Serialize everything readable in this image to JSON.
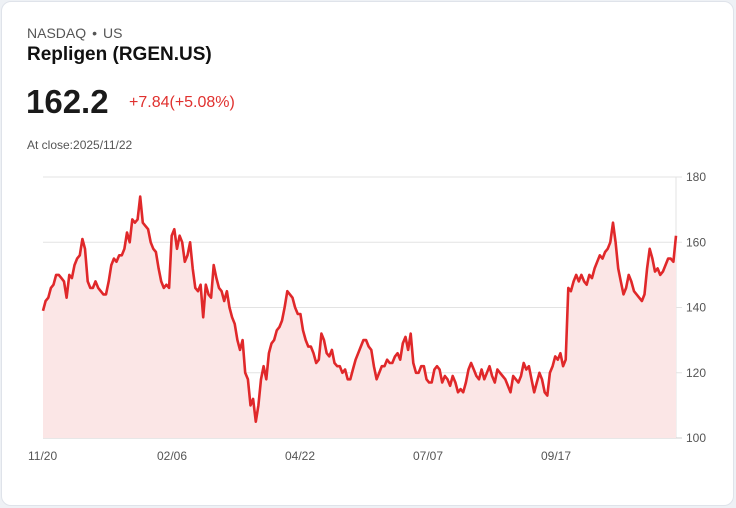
{
  "header": {
    "exchange": "NASDAQ",
    "region": "US",
    "separator": "•",
    "title": "Repligen (RGEN.US)",
    "price": "162.2",
    "change": "+7.84(+5.08%)",
    "at_close": "At close:2025/11/22"
  },
  "colors": {
    "line": "#e0282a",
    "fill": "#fbe6e6",
    "grid": "#e3e3e3",
    "change": "#e0312f"
  },
  "chart_data": {
    "type": "area",
    "title": "Repligen (RGEN.US)",
    "xlabel": "",
    "ylabel": "",
    "ylim": [
      100,
      180
    ],
    "y_ticks": [
      "180",
      "160",
      "140",
      "120",
      "100"
    ],
    "x_ticks": [
      "11/20",
      "02/06",
      "04/22",
      "07/07",
      "09/17"
    ],
    "grid": true,
    "y_axis_position": "right",
    "values": [
      139,
      142,
      143,
      146,
      147,
      150,
      150,
      149,
      148,
      143,
      150,
      149,
      153,
      155,
      156,
      161,
      158,
      148,
      146,
      146,
      148,
      146,
      145,
      144,
      144,
      148,
      153,
      155,
      154,
      156,
      156,
      158,
      163,
      160,
      167,
      166,
      167,
      174,
      166,
      165,
      164,
      160,
      158,
      157,
      152,
      148,
      146,
      147,
      146,
      162,
      164,
      158,
      162,
      160,
      154,
      156,
      160,
      152,
      146,
      145,
      147,
      137,
      147,
      144,
      143,
      153,
      149,
      146,
      145,
      142,
      145,
      140,
      137,
      135,
      130,
      127,
      130,
      120,
      118,
      110,
      112,
      105,
      110,
      118,
      122,
      118,
      126,
      129,
      130,
      133,
      134,
      136,
      140,
      145,
      144,
      143,
      140,
      138,
      138,
      133,
      130,
      128,
      128,
      126,
      123,
      124,
      132,
      130,
      126,
      125,
      127,
      123,
      122,
      122,
      120,
      121,
      118,
      118,
      121,
      124,
      126,
      128,
      130,
      130,
      128,
      127,
      122,
      118,
      120,
      122,
      122,
      124,
      123,
      123,
      125,
      126,
      124,
      129,
      131,
      127,
      132,
      123,
      120,
      120,
      122,
      122,
      118,
      117,
      117,
      121,
      122,
      121,
      117,
      119,
      118,
      116,
      119,
      117,
      114,
      115,
      114,
      117,
      121,
      123,
      121,
      119,
      118,
      121,
      118,
      120,
      122,
      119,
      117,
      121,
      120,
      119,
      118,
      116,
      114,
      119,
      118,
      117,
      119,
      123,
      121,
      122,
      118,
      114,
      117,
      120,
      118,
      114,
      113,
      120,
      122,
      125,
      124,
      126,
      122,
      124,
      146,
      145,
      148,
      150,
      148,
      150,
      148,
      147,
      150,
      149,
      152,
      154,
      156,
      155,
      157,
      158,
      160,
      166,
      160,
      152,
      148,
      144,
      146,
      150,
      148,
      145,
      144,
      143,
      142,
      144,
      152,
      158,
      155,
      151,
      152,
      150,
      151,
      153,
      155,
      155,
      154,
      162
    ]
  }
}
